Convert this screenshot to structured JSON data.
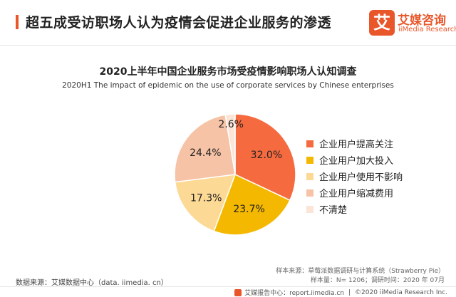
{
  "header": {
    "title": "超五成受访职场人认为疫情会促进企业服务的渗透"
  },
  "logo": {
    "mark": "艾",
    "cn": "艾媒咨询",
    "en": "iiMedia Research",
    "brand_color": "#E8562A"
  },
  "chart_data": {
    "type": "pie",
    "title": "2020上半年中国企业服务市场受疫情影响职场人认知调查",
    "subtitle": "2020H1 The impact of epidemic on the use of corporate services by Chinese enterprises",
    "unit": "%",
    "legend_position": "right",
    "start_angle_deg": 0,
    "direction": "clockwise",
    "slices": [
      {
        "label": "企业用户提高关注",
        "value": 32.0,
        "display": "32.0%",
        "color": "#F56B3F"
      },
      {
        "label": "企业用户加大投入",
        "value": 23.7,
        "display": "23.7%",
        "color": "#F5B800"
      },
      {
        "label": "企业用户使用不影响",
        "value": 17.3,
        "display": "17.3%",
        "color": "#FCD994"
      },
      {
        "label": "企业用户缩减费用",
        "value": 24.4,
        "display": "24.4%",
        "color": "#F6C3A6"
      },
      {
        "label": "不清楚",
        "value": 2.6,
        "display": "2.6%",
        "color": "#FBE5D6"
      }
    ]
  },
  "source": {
    "left": "数据来源：艾媒数据中心（data. iimedia. cn）",
    "right_line1": "样本来源：草莓派数据调研与计算系统（Strawberry Pie）",
    "right_line2": "样本量：N= 1206；调研时间：2020 年 07月"
  },
  "footer": {
    "report_center": "艾媒报告中心：report.iimedia.cn",
    "copyright": "©2020  iiMedia Research  Inc."
  }
}
